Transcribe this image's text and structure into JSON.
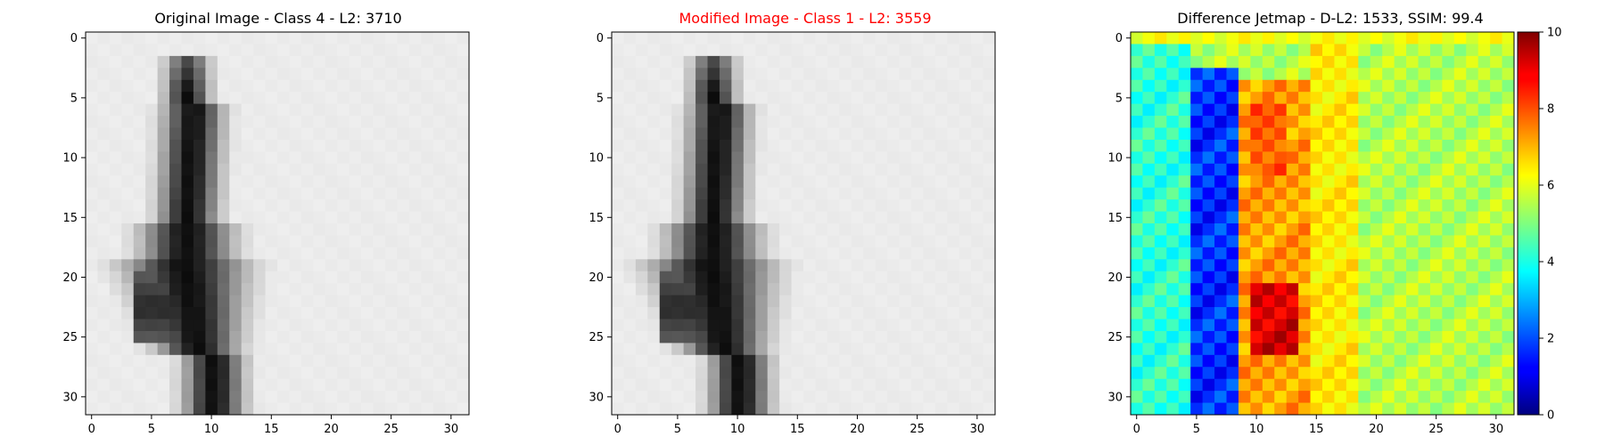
{
  "figure": {
    "panels": [
      {
        "title": "Original Image - Class 4 - L2: 3710",
        "title_color": "#000000"
      },
      {
        "title": "Modified Image - Class 1 - L2: 3559",
        "title_color": "#ff0000"
      },
      {
        "title": "Difference Jetmap - D-L2: 1533, SSIM: 99.4",
        "title_color": "#000000"
      }
    ],
    "colorbar": {
      "min": 0,
      "max": 10,
      "ticks": [
        "0",
        "2",
        "4",
        "6",
        "8",
        "10"
      ]
    }
  },
  "chart_data": [
    {
      "type": "heatmap",
      "title": "Original Image - Class 4 - L2: 3710",
      "colormap": "gray_r",
      "xlim": [
        -0.5,
        31.5
      ],
      "ylim": [
        31.5,
        -0.5
      ],
      "xticks": [
        0,
        5,
        10,
        15,
        20,
        25,
        30
      ],
      "yticks": [
        0,
        5,
        10,
        15,
        20,
        25,
        30
      ],
      "grid": false,
      "description_values": "32x32 grayscale digit-like stroke; dark vertical stroke around columns 6-12 from row 2 to row 31, widest/darkest near rows 20-25 around column 5-8"
    },
    {
      "type": "heatmap",
      "title": "Modified Image - Class 1 - L2: 3559",
      "colormap": "gray_r",
      "xlim": [
        -0.5,
        31.5
      ],
      "ylim": [
        31.5,
        -0.5
      ],
      "xticks": [
        0,
        5,
        10,
        15,
        20,
        25,
        30
      ],
      "yticks": [
        0,
        5,
        10,
        15,
        20,
        25,
        30
      ],
      "grid": false
    },
    {
      "type": "heatmap",
      "title": "Difference Jetmap - D-L2: 1533, SSIM: 99.4",
      "colormap": "jet",
      "vmin": 0,
      "vmax": 10,
      "xlim": [
        -0.5,
        31.5
      ],
      "ylim": [
        31.5,
        -0.5
      ],
      "xticks": [
        0,
        5,
        10,
        15,
        20,
        25,
        30
      ],
      "yticks": [
        0,
        5,
        10,
        15,
        20,
        25,
        30
      ],
      "colorbar_ticks": [
        0,
        2,
        4,
        6,
        8,
        10
      ],
      "grid": false
    }
  ]
}
